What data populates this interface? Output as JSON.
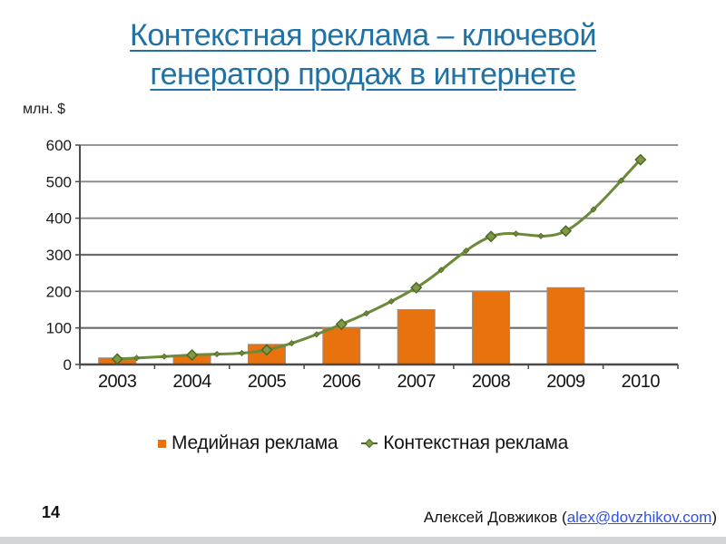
{
  "slide": {
    "title_line1": "Контекстная реклама – ключевой",
    "title_line2": "генератор продаж в интернете",
    "page_number": "14",
    "footer": {
      "author_prefix": "Алексей Довжиков (",
      "email": "alex@dovzhikov.com",
      "suffix": ")"
    }
  },
  "chart_data": {
    "type": "combo",
    "title": "",
    "y_axis_label": "млн. $",
    "categories": [
      "2003",
      "2004",
      "2005",
      "2006",
      "2007",
      "2008",
      "2009",
      "2010"
    ],
    "series": [
      {
        "name": "Медийная реклама",
        "type": "bar",
        "color": "#E8720D",
        "border_color": "#8f8f8f",
        "values": [
          18,
          25,
          55,
          100,
          150,
          200,
          210,
          null
        ]
      },
      {
        "name": "Контекстная реклама",
        "type": "line",
        "smooth": true,
        "color": "#6C8A39",
        "marker": "diamond",
        "marker_fill": "#7E9A44",
        "marker_stroke": "#4F6824",
        "values": [
          15,
          26,
          40,
          110,
          210,
          350,
          365,
          560
        ]
      }
    ],
    "ylim": [
      0,
      600
    ],
    "ytick_step": 100,
    "grid": true,
    "gridline_color": "#878787",
    "gridline_emphasis_levels": [
      100,
      300
    ],
    "gridline_emphasis_color": "#6a6a6a",
    "axis_color": "#4b4b4b",
    "legend_position": "bottom"
  },
  "colors": {
    "title": "#2171A5",
    "link": "#3152E1",
    "text": "#1f1f1f"
  }
}
